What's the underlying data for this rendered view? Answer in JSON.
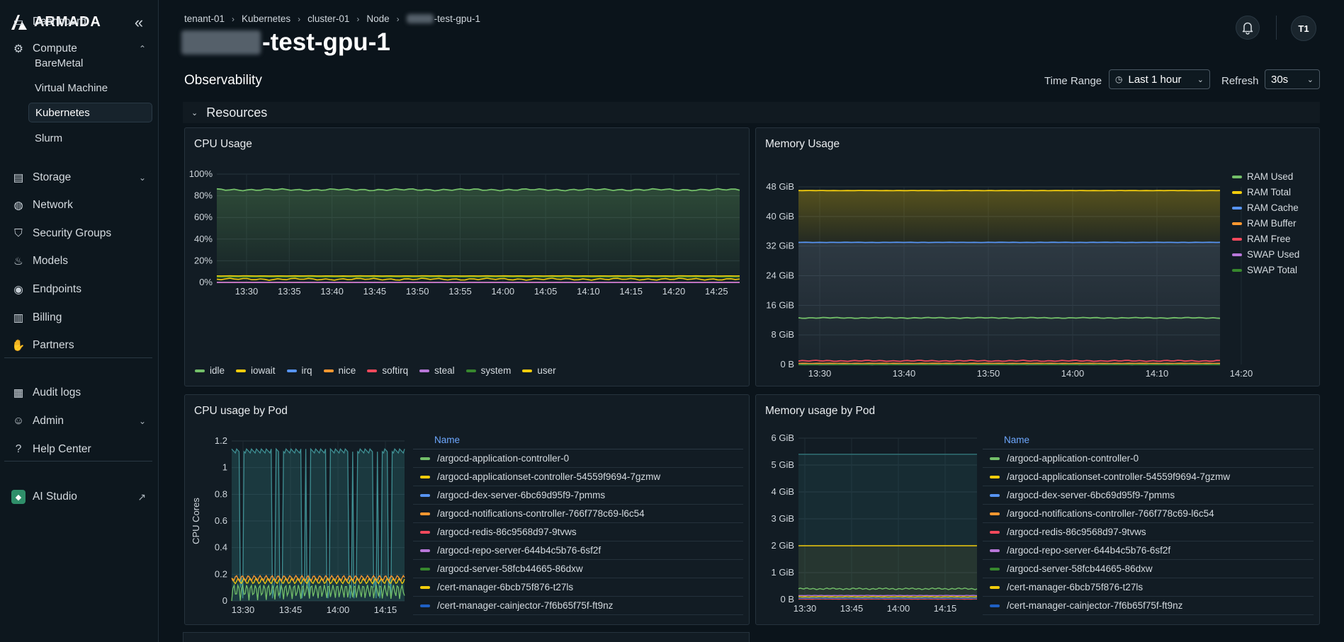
{
  "app": {
    "name": "ARMADA"
  },
  "sidebar": {
    "items": [
      {
        "label": "Dashboard",
        "icon": "layout-icon"
      },
      {
        "label": "Compute",
        "icon": "compute-icon"
      },
      {
        "label": "Storage",
        "icon": "storage-icon"
      },
      {
        "label": "Network",
        "icon": "globe-icon"
      },
      {
        "label": "Security Groups",
        "icon": "shield-icon"
      },
      {
        "label": "Models",
        "icon": "flame-icon"
      },
      {
        "label": "Endpoints",
        "icon": "broadcast-icon"
      },
      {
        "label": "Billing",
        "icon": "receipt-icon"
      },
      {
        "label": "Partners",
        "icon": "handshake-icon"
      },
      {
        "label": "Audit logs",
        "icon": "clipboard-icon"
      },
      {
        "label": "Admin",
        "icon": "user-gear-icon"
      },
      {
        "label": "Help Center",
        "icon": "help-icon"
      },
      {
        "label": "AI Studio",
        "icon": "ai-studio-icon"
      }
    ],
    "compute_sub": [
      "BareMetal",
      "Virtual Machine",
      "Kubernetes",
      "Slurm"
    ]
  },
  "breadcrumb": [
    "tenant-01",
    "Kubernetes",
    "cluster-01",
    "Node",
    "-test-gpu-1"
  ],
  "page": {
    "title_suffix": "-test-gpu-1",
    "section": "Observability",
    "resources": "Resources"
  },
  "user": {
    "initials": "T1"
  },
  "controls": {
    "time_range_label": "Time Range",
    "time_range_value": "Last 1 hour",
    "refresh_label": "Refresh",
    "refresh_value": "30s"
  },
  "panels": {
    "cpu": {
      "title": "CPU Usage"
    },
    "mem": {
      "title": "Memory Usage"
    },
    "cpu_pod": {
      "title": "CPU usage by Pod"
    },
    "mem_pod": {
      "title": "Memory usage by Pod"
    }
  },
  "colors": {
    "green": "#73bf69",
    "yellow": "#f2cc0c",
    "blue": "#5794f2",
    "orange": "#ff9830",
    "red": "#f2495c",
    "purple": "#b877d9",
    "darkgreen": "#37872d",
    "darkblue": "#1f60c4",
    "teal": "#2f6f73"
  },
  "chart_data": [
    {
      "type": "line",
      "title": "CPU Usage",
      "x": [
        "13:30",
        "13:35",
        "13:40",
        "13:45",
        "13:50",
        "13:55",
        "14:00",
        "14:05",
        "14:10",
        "14:15",
        "14:20",
        "14:25"
      ],
      "ylim": [
        0,
        100
      ],
      "yticks": [
        "0%",
        "20%",
        "40%",
        "60%",
        "80%",
        "100%"
      ],
      "series": [
        {
          "name": "idle",
          "color": "#73bf69",
          "values": [
            86,
            85,
            86,
            85,
            86,
            85,
            86,
            85,
            86,
            85,
            86,
            86
          ]
        },
        {
          "name": "iowait",
          "color": "#f2cc0c",
          "values": [
            3,
            3,
            3,
            3,
            3,
            3,
            3,
            3,
            3,
            3,
            3,
            3
          ]
        },
        {
          "name": "irq",
          "color": "#5794f2",
          "values": [
            0,
            0,
            0,
            0,
            0,
            0,
            0,
            0,
            0,
            0,
            0,
            0
          ]
        },
        {
          "name": "nice",
          "color": "#ff9830",
          "values": [
            0,
            0,
            0,
            0,
            0,
            0,
            0,
            0,
            0,
            0,
            0,
            0
          ]
        },
        {
          "name": "softirq",
          "color": "#f2495c",
          "values": [
            0,
            0,
            0,
            0,
            0,
            0,
            0,
            0,
            0,
            0,
            0,
            0
          ]
        },
        {
          "name": "steal",
          "color": "#b877d9",
          "values": [
            0,
            0,
            0,
            0,
            0,
            0,
            0,
            0,
            0,
            0,
            0,
            0
          ]
        },
        {
          "name": "system",
          "color": "#37872d",
          "values": [
            5,
            5,
            5,
            5,
            5,
            5,
            5,
            5,
            5,
            5,
            5,
            5
          ]
        },
        {
          "name": "user",
          "color": "#f2cc0c",
          "values": [
            6,
            6,
            6,
            6,
            6,
            6,
            6,
            6,
            6,
            6,
            6,
            6
          ]
        }
      ],
      "legend": "bottom"
    },
    {
      "type": "area",
      "title": "Memory Usage",
      "x": [
        "13:30",
        "13:40",
        "13:50",
        "14:00",
        "14:10",
        "14:20"
      ],
      "ylim": [
        0,
        48
      ],
      "yticks": [
        "0 B",
        "8 GiB",
        "16 GiB",
        "24 GiB",
        "32 GiB",
        "40 GiB",
        "48 GiB"
      ],
      "series": [
        {
          "name": "RAM Used",
          "color": "#73bf69",
          "values": [
            12.6,
            12.6,
            12.6,
            12.6,
            12.6,
            12.6
          ]
        },
        {
          "name": "RAM Total",
          "color": "#f2cc0c",
          "values": [
            47,
            47,
            47,
            47,
            47,
            47
          ]
        },
        {
          "name": "RAM Cache",
          "color": "#5794f2",
          "values": [
            33,
            33,
            33,
            33,
            33,
            33
          ]
        },
        {
          "name": "RAM Buffer",
          "color": "#ff9830",
          "values": [
            0.3,
            0.3,
            0.3,
            0.3,
            0.3,
            0.3
          ]
        },
        {
          "name": "RAM Free",
          "color": "#f2495c",
          "values": [
            1,
            1,
            1,
            1,
            1,
            1
          ]
        },
        {
          "name": "SWAP Used",
          "color": "#b877d9",
          "values": [
            0,
            0,
            0,
            0,
            0,
            0
          ]
        },
        {
          "name": "SWAP Total",
          "color": "#37872d",
          "values": [
            0,
            0,
            0,
            0,
            0,
            0
          ]
        }
      ],
      "legend": "right"
    },
    {
      "type": "line",
      "title": "CPU usage by Pod",
      "ylabel": "CPU Cores",
      "x": [
        "13:30",
        "13:45",
        "14:00",
        "14:15"
      ],
      "ylim": [
        0,
        1.2
      ],
      "yticks": [
        "0",
        "0.2",
        "0.4",
        "0.6",
        "0.8",
        "1",
        "1.2"
      ],
      "series": [
        {
          "name": "/argocd-application-controller-0",
          "color": "#73bf69",
          "values": [
            0.1,
            0.05,
            0.1,
            0.05
          ]
        },
        {
          "name": "/argocd-applicationset-controller-54559f9694-7gzmw",
          "color": "#f2cc0c",
          "values": [
            0.15,
            0.15,
            0.15,
            0.15
          ]
        },
        {
          "name": "/argocd-dex-server-6bc69d95f9-7pmms",
          "color": "#5794f2",
          "values": [
            0,
            0,
            0,
            0
          ]
        },
        {
          "name": "/argocd-notifications-controller-766f778c69-l6c54",
          "color": "#ff9830",
          "values": [
            0.17,
            0.17,
            0.17,
            0.17
          ]
        },
        {
          "name": "/argocd-redis-86c9568d97-9tvws",
          "color": "#f2495c",
          "values": [
            0,
            0,
            0,
            0
          ]
        },
        {
          "name": "/argocd-repo-server-644b4c5b76-6sf2f",
          "color": "#b877d9",
          "values": [
            0,
            0,
            0,
            0
          ]
        },
        {
          "name": "/argocd-server-58fcb44665-86dxw",
          "color": "#37872d",
          "values": [
            0,
            0,
            0,
            0
          ]
        },
        {
          "name": "/cert-manager-6bcb75f876-t27ls",
          "color": "#f2cc0c",
          "values": [
            0,
            0,
            0,
            0
          ]
        },
        {
          "name": "/cert-manager-cainjector-7f6b65f75f-ft9nz",
          "color": "#1f60c4",
          "values": [
            1.14,
            1.14,
            1.14,
            1.14
          ]
        }
      ],
      "legend_header": "Name"
    },
    {
      "type": "area",
      "title": "Memory usage by Pod",
      "x": [
        "13:30",
        "13:45",
        "14:00",
        "14:15"
      ],
      "ylim": [
        0,
        6
      ],
      "yticks": [
        "0 B",
        "1 GiB",
        "2 GiB",
        "3 GiB",
        "4 GiB",
        "5 GiB",
        "6 GiB"
      ],
      "series": [
        {
          "name": "/argocd-application-controller-0",
          "color": "#73bf69",
          "values": [
            0.4,
            0.4,
            0.45,
            0.4
          ]
        },
        {
          "name": "/argocd-applicationset-controller-54559f9694-7gzmw",
          "color": "#f2cc0c",
          "values": [
            0.1,
            0.1,
            0.1,
            0.1
          ]
        },
        {
          "name": "/argocd-dex-server-6bc69d95f9-7pmms",
          "color": "#5794f2",
          "values": [
            0.05,
            0.05,
            0.05,
            0.05
          ]
        },
        {
          "name": "/argocd-notifications-controller-766f778c69-l6c54",
          "color": "#ff9830",
          "values": [
            0.05,
            0.05,
            0.05,
            0.05
          ]
        },
        {
          "name": "/argocd-redis-86c9568d97-9tvws",
          "color": "#f2495c",
          "values": [
            0.02,
            0.02,
            0.02,
            0.02
          ]
        },
        {
          "name": "/argocd-repo-server-644b4c5b76-6sf2f",
          "color": "#b877d9",
          "values": [
            0.15,
            0.15,
            0.15,
            0.15
          ]
        },
        {
          "name": "/argocd-server-58fcb44665-86dxw",
          "color": "#37872d",
          "values": [
            0.05,
            0.05,
            0.05,
            0.05
          ]
        },
        {
          "name": "/cert-manager-6bcb75f876-t27ls",
          "color": "#f2cc0c",
          "values": [
            2,
            2,
            2,
            2
          ]
        },
        {
          "name": "/cert-manager-cainjector-7f6b65f75f-ft9nz",
          "color": "#1f60c4",
          "values": [
            0.05,
            0.05,
            0.05,
            0.05
          ]
        }
      ],
      "extra_series": [
        {
          "color": "#2f6f73",
          "values": [
            5.4,
            5.4,
            5.4,
            5.4
          ]
        }
      ],
      "legend_header": "Name"
    }
  ]
}
